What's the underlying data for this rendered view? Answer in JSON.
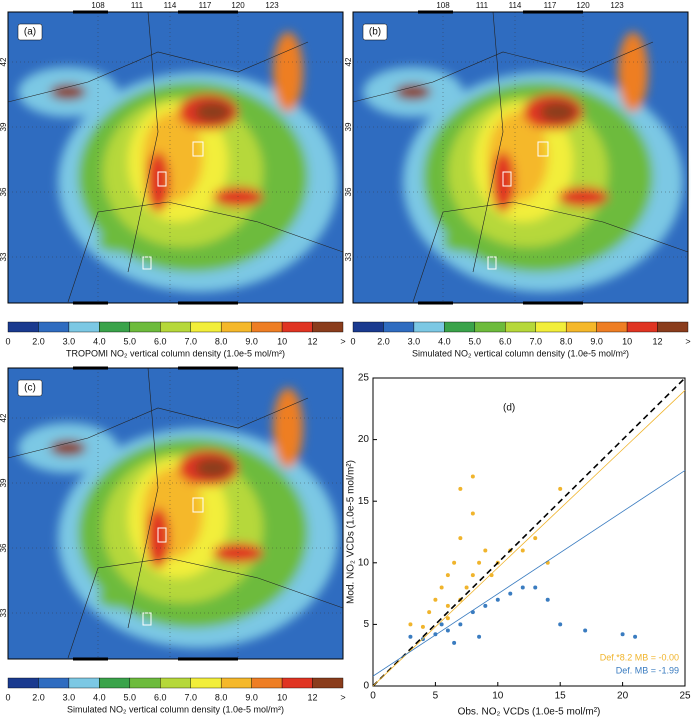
{
  "maps": [
    {
      "label": "(a)",
      "top_ticks": [
        "108",
        "111",
        "114",
        "117",
        "120",
        "123"
      ],
      "left_ticks": [
        "42",
        "39",
        "36",
        "33"
      ],
      "colorbar_title": "TROPOMI NO₂ vertical column density (1.0e-5 mol/m²)"
    },
    {
      "label": "(b)",
      "top_ticks": [
        "108",
        "111",
        "114",
        "117",
        "120",
        "123"
      ],
      "left_ticks": [
        "42",
        "39",
        "36",
        "33"
      ],
      "colorbar_title": "Simulated NO₂ vertical column density (1.0e-5 mol/m²)"
    },
    {
      "label": "(c)",
      "top_ticks": [],
      "left_ticks": [
        "42",
        "39",
        "36",
        "33"
      ],
      "colorbar_title": "Simulated NO₂ vertical column density (1.0e-5 mol/m²)"
    }
  ],
  "colorbar": {
    "labels": [
      "0",
      "2.0",
      "3.0",
      "4.0",
      "5.0",
      "6.0",
      "7.0",
      "8.0",
      "9.0",
      "10",
      "12",
      ">"
    ],
    "colors": [
      "#1a3a8f",
      "#2f6cc0",
      "#7cc8e4",
      "#3aa34a",
      "#6dbb3c",
      "#b6d83a",
      "#f2ee3a",
      "#f5b82a",
      "#ee7e24",
      "#e03422",
      "#8a3c1c"
    ]
  },
  "chart_data": {
    "type": "scatter",
    "panel_label": "(d)",
    "xlabel": "Obs. NO₂ VCDs (1.0e-5 mol/m²)",
    "ylabel": "Mod. NO₂ VCDs (1.0e-5 mol/m²)",
    "xlim": [
      0,
      25
    ],
    "ylim": [
      0,
      25
    ],
    "xticks": [
      0,
      5,
      10,
      15,
      20,
      25
    ],
    "yticks": [
      0,
      5,
      10,
      15,
      20,
      25
    ],
    "series": [
      {
        "name": "Def.*8.2 MB = -0.00",
        "color": "#f0b42c",
        "x": [
          3,
          4,
          4.5,
          5,
          5.5,
          6,
          6,
          6.5,
          7,
          7,
          7.5,
          8,
          8,
          8.5,
          9,
          9.5,
          10,
          11,
          12,
          13,
          14,
          15,
          7,
          8,
          6
        ],
        "values": [
          5,
          4.8,
          6,
          7,
          8,
          9,
          6.5,
          10,
          7,
          12,
          8,
          9,
          14,
          10,
          11,
          9,
          10,
          11,
          11,
          12,
          10,
          16,
          16,
          17,
          5.5
        ]
      },
      {
        "name": "Def. MB = -1.99",
        "color": "#3a7cc0",
        "x": [
          3,
          4,
          5,
          5.5,
          6,
          7,
          8,
          9,
          10,
          11,
          12,
          13,
          14,
          15,
          17,
          20,
          21,
          6.5,
          8.5
        ],
        "values": [
          4,
          3.8,
          4.2,
          5,
          4.5,
          5,
          6,
          6.5,
          7,
          7.5,
          8,
          8,
          7,
          5,
          4.5,
          4.2,
          4,
          3.5,
          4
        ]
      }
    ],
    "lines": [
      {
        "color": "#000000",
        "dashed": true,
        "x": [
          0,
          25
        ],
        "values": [
          0,
          25
        ]
      },
      {
        "color": "#f0b42c",
        "dashed": false,
        "x": [
          0,
          25
        ],
        "values": [
          0,
          24
        ]
      },
      {
        "color": "#3a7cc0",
        "dashed": false,
        "x": [
          0,
          25
        ],
        "values": [
          0.8,
          17.5
        ]
      }
    ]
  }
}
